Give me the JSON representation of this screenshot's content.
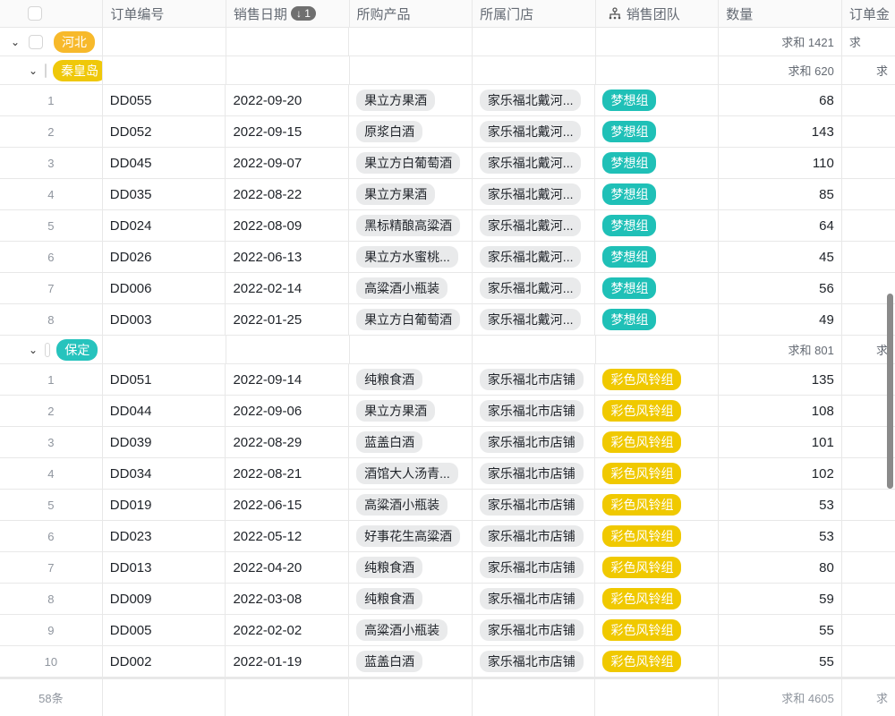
{
  "header": {
    "columns": [
      "订单编号",
      "销售日期",
      "所购产品",
      "所属门店",
      "销售团队",
      "数量",
      "订单金"
    ],
    "sort_badge": "↓ 1",
    "team_icon": "org-tree-icon"
  },
  "colors": {
    "hebei": "#f7b92b",
    "qinhuangdao": "#efc80a",
    "baoding": "#26c3bd",
    "dream": "#1fc0b7",
    "bell": "#f0c900"
  },
  "groups": {
    "hebei": {
      "label": "河北",
      "sum": "求和 1421",
      "sum2": "求"
    },
    "qinhuangdao": {
      "label": "秦皇岛",
      "sum": "求和 620",
      "sum2": "求"
    },
    "baoding": {
      "label": "保定",
      "sum": "求和 801",
      "sum2": "求"
    }
  },
  "qinhuangdao_rows": [
    {
      "n": "1",
      "id": "DD055",
      "date": "2022-09-20",
      "product": "果立方果酒",
      "store": "家乐福北戴河...",
      "team": "梦想组",
      "qty": "68"
    },
    {
      "n": "2",
      "id": "DD052",
      "date": "2022-09-15",
      "product": "原浆白酒",
      "store": "家乐福北戴河...",
      "team": "梦想组",
      "qty": "143"
    },
    {
      "n": "3",
      "id": "DD045",
      "date": "2022-09-07",
      "product": "果立方白葡萄酒",
      "store": "家乐福北戴河...",
      "team": "梦想组",
      "qty": "110"
    },
    {
      "n": "4",
      "id": "DD035",
      "date": "2022-08-22",
      "product": "果立方果酒",
      "store": "家乐福北戴河...",
      "team": "梦想组",
      "qty": "85"
    },
    {
      "n": "5",
      "id": "DD024",
      "date": "2022-08-09",
      "product": "黑标精酿高粱酒",
      "store": "家乐福北戴河...",
      "team": "梦想组",
      "qty": "64"
    },
    {
      "n": "6",
      "id": "DD026",
      "date": "2022-06-13",
      "product": "果立方水蜜桃...",
      "store": "家乐福北戴河...",
      "team": "梦想组",
      "qty": "45"
    },
    {
      "n": "7",
      "id": "DD006",
      "date": "2022-02-14",
      "product": "高粱酒小瓶装",
      "store": "家乐福北戴河...",
      "team": "梦想组",
      "qty": "56"
    },
    {
      "n": "8",
      "id": "DD003",
      "date": "2022-01-25",
      "product": "果立方白葡萄酒",
      "store": "家乐福北戴河...",
      "team": "梦想组",
      "qty": "49"
    }
  ],
  "baoding_rows": [
    {
      "n": "1",
      "id": "DD051",
      "date": "2022-09-14",
      "product": "纯粮食酒",
      "store": "家乐福北市店铺",
      "team": "彩色风铃组",
      "qty": "135"
    },
    {
      "n": "2",
      "id": "DD044",
      "date": "2022-09-06",
      "product": "果立方果酒",
      "store": "家乐福北市店铺",
      "team": "彩色风铃组",
      "qty": "108"
    },
    {
      "n": "3",
      "id": "DD039",
      "date": "2022-08-29",
      "product": "蓝盖白酒",
      "store": "家乐福北市店铺",
      "team": "彩色风铃组",
      "qty": "101"
    },
    {
      "n": "4",
      "id": "DD034",
      "date": "2022-08-21",
      "product": "酒馆大人汤青...",
      "store": "家乐福北市店铺",
      "team": "彩色风铃组",
      "qty": "102"
    },
    {
      "n": "5",
      "id": "DD019",
      "date": "2022-06-15",
      "product": "高粱酒小瓶装",
      "store": "家乐福北市店铺",
      "team": "彩色风铃组",
      "qty": "53"
    },
    {
      "n": "6",
      "id": "DD023",
      "date": "2022-05-12",
      "product": "好事花生高粱酒",
      "store": "家乐福北市店铺",
      "team": "彩色风铃组",
      "qty": "53"
    },
    {
      "n": "7",
      "id": "DD013",
      "date": "2022-04-20",
      "product": "纯粮食酒",
      "store": "家乐福北市店铺",
      "team": "彩色风铃组",
      "qty": "80"
    },
    {
      "n": "8",
      "id": "DD009",
      "date": "2022-03-08",
      "product": "纯粮食酒",
      "store": "家乐福北市店铺",
      "team": "彩色风铃组",
      "qty": "59"
    },
    {
      "n": "9",
      "id": "DD005",
      "date": "2022-02-02",
      "product": "高粱酒小瓶装",
      "store": "家乐福北市店铺",
      "team": "彩色风铃组",
      "qty": "55"
    },
    {
      "n": "10",
      "id": "DD002",
      "date": "2022-01-19",
      "product": "蓝盖白酒",
      "store": "家乐福北市店铺",
      "team": "彩色风铃组",
      "qty": "55"
    }
  ],
  "footer": {
    "count": "58条",
    "sum": "求和 4605",
    "sum2": "求"
  }
}
